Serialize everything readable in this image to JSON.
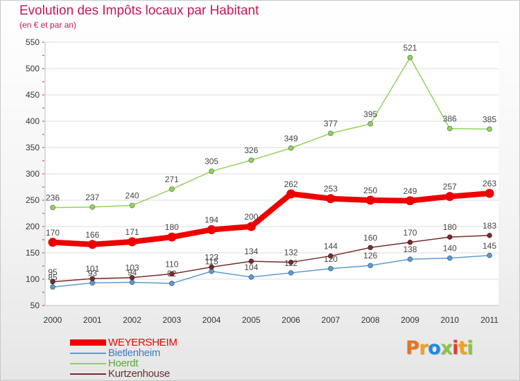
{
  "title": "Evolution des Impôts locaux par Habitant",
  "subtitle": "(en € et par an)",
  "logo": {
    "text": "Proxiti",
    "colors": [
      "#e8731e",
      "#f2a31c",
      "#1e88e5",
      "#8bc34a",
      "#e53935",
      "#f2a31c",
      "#8bc34a"
    ]
  },
  "chart_data": {
    "type": "line",
    "categories": [
      "2000",
      "2001",
      "2002",
      "2003",
      "2004",
      "2005",
      "2006",
      "2007",
      "2008",
      "2009",
      "2010",
      "2011"
    ],
    "y_ticks": [
      "50",
      "100",
      "150",
      "200",
      "250",
      "300",
      "350",
      "400",
      "450",
      "500",
      "550"
    ],
    "ylim": [
      50,
      550
    ],
    "grid": "horizontal, light gray",
    "legend_position": "bottom-left",
    "series": [
      {
        "name": "Bietlenheim",
        "color": "#5b9bd5",
        "values": [
          85,
          93,
          94,
          92,
          115,
          104,
          112,
          120,
          126,
          138,
          140,
          145
        ]
      },
      {
        "name": "Hoerdt",
        "color": "#90d35c",
        "values": [
          236,
          237,
          240,
          271,
          305,
          326,
          349,
          377,
          395,
          521,
          386,
          385
        ]
      },
      {
        "name": "Kurtzenhouse",
        "color": "#7a2a2a",
        "values": [
          95,
          101,
          103,
          110,
          123,
          134,
          132,
          144,
          160,
          170,
          180,
          183
        ]
      },
      {
        "name": "WEYERSHEIM",
        "color": "#ee0000",
        "values": [
          170,
          166,
          171,
          180,
          194,
          200,
          262,
          253,
          250,
          249,
          257,
          263
        ]
      }
    ],
    "legend": [
      {
        "name": "WEYERSHEIM",
        "color": "#ee0000"
      },
      {
        "name": "Bietlenheim",
        "color": "#5b9bd5"
      },
      {
        "name": "Hoerdt",
        "color": "#90d35c"
      },
      {
        "name": "Kurtzenhouse",
        "color": "#7a2a2a"
      }
    ]
  }
}
